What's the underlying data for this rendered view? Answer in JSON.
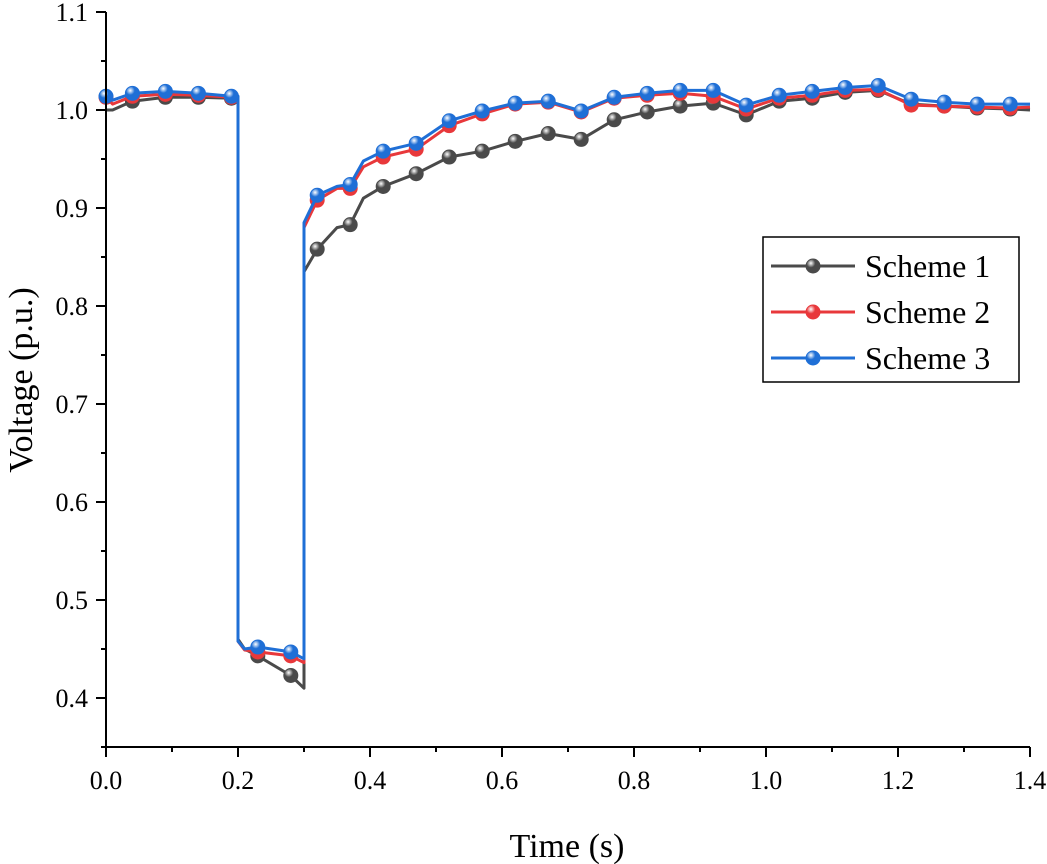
{
  "chart_data": {
    "type": "line",
    "xlabel": "Time (s)",
    "ylabel": "Voltage (p.u.)",
    "xlim": [
      0,
      1.4
    ],
    "ylim": [
      0.35,
      1.1
    ],
    "xticks": [
      "0.0",
      "0.2",
      "0.4",
      "0.6",
      "0.8",
      "1.0",
      "1.2",
      "1.4"
    ],
    "yticks": [
      "0.4",
      "0.5",
      "0.6",
      "0.7",
      "0.8",
      "0.9",
      "1.0",
      "1.1"
    ],
    "legend_position": "right",
    "series": [
      {
        "name": "Scheme 1",
        "color": "#4a4a4a",
        "line": [
          [
            0,
            1.0
          ],
          [
            0.01,
            1.0
          ],
          [
            0.04,
            1.009
          ],
          [
            0.09,
            1.013
          ],
          [
            0.14,
            1.013
          ],
          [
            0.19,
            1.012
          ],
          [
            0.2,
            1.012
          ],
          [
            0.2,
            0.46
          ],
          [
            0.21,
            0.45
          ],
          [
            0.23,
            0.443
          ],
          [
            0.28,
            0.423
          ],
          [
            0.3,
            0.41
          ],
          [
            0.3,
            0.835
          ],
          [
            0.32,
            0.858
          ],
          [
            0.35,
            0.88
          ],
          [
            0.37,
            0.883
          ],
          [
            0.39,
            0.91
          ],
          [
            0.42,
            0.922
          ],
          [
            0.47,
            0.935
          ],
          [
            0.52,
            0.952
          ],
          [
            0.57,
            0.958
          ],
          [
            0.62,
            0.968
          ],
          [
            0.67,
            0.976
          ],
          [
            0.72,
            0.97
          ],
          [
            0.77,
            0.99
          ],
          [
            0.82,
            0.998
          ],
          [
            0.87,
            1.004
          ],
          [
            0.92,
            1.007
          ],
          [
            0.97,
            0.995
          ],
          [
            1.02,
            1.009
          ],
          [
            1.07,
            1.012
          ],
          [
            1.12,
            1.018
          ],
          [
            1.17,
            1.02
          ],
          [
            1.22,
            1.006
          ],
          [
            1.27,
            1.004
          ],
          [
            1.32,
            1.002
          ],
          [
            1.37,
            1.001
          ],
          [
            1.4,
            1.0
          ]
        ],
        "markers": [
          [
            0.04,
            1.009
          ],
          [
            0.09,
            1.013
          ],
          [
            0.14,
            1.013
          ],
          [
            0.19,
            1.012
          ],
          [
            0.23,
            0.443
          ],
          [
            0.28,
            0.423
          ],
          [
            0.32,
            0.858
          ],
          [
            0.37,
            0.883
          ],
          [
            0.42,
            0.922
          ],
          [
            0.47,
            0.935
          ],
          [
            0.52,
            0.952
          ],
          [
            0.57,
            0.958
          ],
          [
            0.62,
            0.968
          ],
          [
            0.67,
            0.976
          ],
          [
            0.72,
            0.97
          ],
          [
            0.77,
            0.99
          ],
          [
            0.82,
            0.998
          ],
          [
            0.87,
            1.004
          ],
          [
            0.92,
            1.007
          ],
          [
            0.97,
            0.995
          ],
          [
            1.02,
            1.009
          ],
          [
            1.07,
            1.012
          ],
          [
            1.12,
            1.018
          ],
          [
            1.17,
            1.02
          ],
          [
            1.22,
            1.006
          ],
          [
            1.27,
            1.004
          ],
          [
            1.32,
            1.002
          ],
          [
            1.37,
            1.001
          ]
        ]
      },
      {
        "name": "Scheme 2",
        "color": "#e8383b",
        "line": [
          [
            0,
            1.013
          ],
          [
            0.01,
            1.006
          ],
          [
            0.04,
            1.014
          ],
          [
            0.09,
            1.016
          ],
          [
            0.14,
            1.015
          ],
          [
            0.19,
            1.013
          ],
          [
            0.2,
            1.013
          ],
          [
            0.2,
            0.458
          ],
          [
            0.21,
            0.449
          ],
          [
            0.23,
            0.447
          ],
          [
            0.28,
            0.443
          ],
          [
            0.3,
            0.436
          ],
          [
            0.3,
            0.88
          ],
          [
            0.32,
            0.908
          ],
          [
            0.35,
            0.92
          ],
          [
            0.37,
            0.92
          ],
          [
            0.39,
            0.942
          ],
          [
            0.42,
            0.952
          ],
          [
            0.47,
            0.96
          ],
          [
            0.52,
            0.984
          ],
          [
            0.57,
            0.996
          ],
          [
            0.62,
            1.006
          ],
          [
            0.67,
            1.008
          ],
          [
            0.72,
            0.998
          ],
          [
            0.77,
            1.012
          ],
          [
            0.82,
            1.015
          ],
          [
            0.87,
            1.017
          ],
          [
            0.92,
            1.014
          ],
          [
            0.97,
            1.001
          ],
          [
            1.02,
            1.012
          ],
          [
            1.07,
            1.015
          ],
          [
            1.12,
            1.02
          ],
          [
            1.17,
            1.021
          ],
          [
            1.22,
            1.005
          ],
          [
            1.27,
            1.004
          ],
          [
            1.32,
            1.003
          ],
          [
            1.37,
            1.002
          ],
          [
            1.4,
            1.003
          ]
        ],
        "markers": [
          [
            0.0,
            1.013
          ],
          [
            0.04,
            1.014
          ],
          [
            0.09,
            1.016
          ],
          [
            0.14,
            1.015
          ],
          [
            0.19,
            1.013
          ],
          [
            0.23,
            0.447
          ],
          [
            0.28,
            0.443
          ],
          [
            0.32,
            0.908
          ],
          [
            0.37,
            0.92
          ],
          [
            0.42,
            0.952
          ],
          [
            0.47,
            0.96
          ],
          [
            0.52,
            0.984
          ],
          [
            0.57,
            0.996
          ],
          [
            0.62,
            1.006
          ],
          [
            0.67,
            1.008
          ],
          [
            0.72,
            0.998
          ],
          [
            0.77,
            1.012
          ],
          [
            0.82,
            1.015
          ],
          [
            0.87,
            1.017
          ],
          [
            0.92,
            1.014
          ],
          [
            0.97,
            1.001
          ],
          [
            1.02,
            1.012
          ],
          [
            1.07,
            1.015
          ],
          [
            1.12,
            1.02
          ],
          [
            1.17,
            1.021
          ],
          [
            1.22,
            1.005
          ],
          [
            1.27,
            1.004
          ],
          [
            1.32,
            1.003
          ],
          [
            1.37,
            1.002
          ]
        ]
      },
      {
        "name": "Scheme 3",
        "color": "#1f6fd6",
        "line": [
          [
            0,
            1.014
          ],
          [
            0.01,
            1.01
          ],
          [
            0.04,
            1.017
          ],
          [
            0.09,
            1.019
          ],
          [
            0.14,
            1.017
          ],
          [
            0.19,
            1.014
          ],
          [
            0.2,
            1.014
          ],
          [
            0.2,
            0.458
          ],
          [
            0.21,
            0.45
          ],
          [
            0.23,
            0.452
          ],
          [
            0.28,
            0.447
          ],
          [
            0.3,
            0.44
          ],
          [
            0.3,
            0.885
          ],
          [
            0.32,
            0.913
          ],
          [
            0.35,
            0.922
          ],
          [
            0.37,
            0.924
          ],
          [
            0.39,
            0.948
          ],
          [
            0.42,
            0.958
          ],
          [
            0.47,
            0.966
          ],
          [
            0.52,
            0.989
          ],
          [
            0.57,
            0.999
          ],
          [
            0.62,
            1.007
          ],
          [
            0.67,
            1.009
          ],
          [
            0.72,
            0.999
          ],
          [
            0.77,
            1.013
          ],
          [
            0.82,
            1.017
          ],
          [
            0.87,
            1.02
          ],
          [
            0.92,
            1.02
          ],
          [
            0.97,
            1.005
          ],
          [
            1.02,
            1.015
          ],
          [
            1.07,
            1.019
          ],
          [
            1.12,
            1.023
          ],
          [
            1.17,
            1.025
          ],
          [
            1.22,
            1.011
          ],
          [
            1.27,
            1.008
          ],
          [
            1.32,
            1.006
          ],
          [
            1.37,
            1.006
          ],
          [
            1.4,
            1.006
          ]
        ],
        "markers": [
          [
            0.0,
            1.014
          ],
          [
            0.04,
            1.017
          ],
          [
            0.09,
            1.019
          ],
          [
            0.14,
            1.017
          ],
          [
            0.19,
            1.014
          ],
          [
            0.23,
            0.452
          ],
          [
            0.28,
            0.447
          ],
          [
            0.32,
            0.913
          ],
          [
            0.37,
            0.924
          ],
          [
            0.42,
            0.958
          ],
          [
            0.47,
            0.966
          ],
          [
            0.52,
            0.989
          ],
          [
            0.57,
            0.999
          ],
          [
            0.62,
            1.007
          ],
          [
            0.67,
            1.009
          ],
          [
            0.72,
            0.999
          ],
          [
            0.77,
            1.013
          ],
          [
            0.82,
            1.017
          ],
          [
            0.87,
            1.02
          ],
          [
            0.92,
            1.02
          ],
          [
            0.97,
            1.005
          ],
          [
            1.02,
            1.015
          ],
          [
            1.07,
            1.019
          ],
          [
            1.12,
            1.023
          ],
          [
            1.17,
            1.025
          ],
          [
            1.22,
            1.011
          ],
          [
            1.27,
            1.008
          ],
          [
            1.32,
            1.006
          ],
          [
            1.37,
            1.006
          ]
        ]
      }
    ]
  }
}
